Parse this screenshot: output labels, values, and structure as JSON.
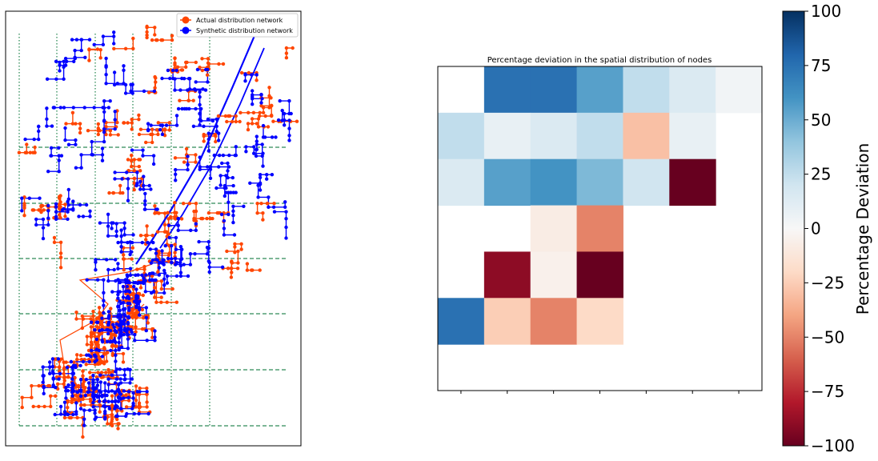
{
  "figure": {
    "panels": [
      "network-map",
      "deviation-heatmap"
    ]
  },
  "chart_data": [
    {
      "type": "scatter",
      "subtype": "network-map",
      "title": "",
      "xlabel": "",
      "ylabel": "",
      "legend_position": "top-right",
      "legend": [
        {
          "label": "Actual distribution network",
          "color": "#ff4500"
        },
        {
          "label": "Synthetic distribution network",
          "color": "#0000ff"
        }
      ],
      "grid_lines": {
        "color": "#2e8b57",
        "horizontal_style": "dashed",
        "vertical_style": "dotted"
      },
      "series": [
        {
          "name": "Actual distribution network",
          "color": "#ff4500",
          "marker": "o"
        },
        {
          "name": "Synthetic distribution network",
          "color": "#0000ff",
          "marker": "o"
        }
      ]
    },
    {
      "type": "heatmap",
      "title": "Percentage deviation in the spatial distribution of nodes",
      "xlabel": "",
      "ylabel": "",
      "rows": 7,
      "cols": 7,
      "values": [
        [
          null,
          75,
          75,
          55,
          25,
          15,
          3
        ],
        [
          25,
          8,
          15,
          25,
          -30,
          8,
          null
        ],
        [
          15,
          55,
          60,
          45,
          20,
          -100,
          null
        ],
        [
          null,
          null,
          -8,
          -50,
          null,
          null,
          null
        ],
        [
          null,
          -90,
          -5,
          -100,
          null,
          null,
          null
        ],
        [
          75,
          -25,
          -50,
          -20,
          null,
          null,
          null
        ],
        [
          null,
          null,
          null,
          null,
          null,
          null,
          null
        ]
      ],
      "colorbar": {
        "label": "Percentage Deviation",
        "min": -100,
        "max": 100,
        "ticks": [
          "100",
          "75",
          "50",
          "25",
          "0",
          "−25",
          "−50",
          "−75",
          "−100"
        ],
        "colormap": "RdBu"
      }
    }
  ]
}
